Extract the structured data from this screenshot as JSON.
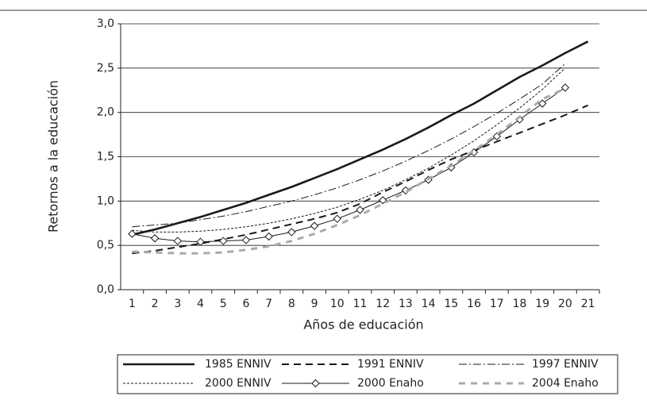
{
  "chart_data": {
    "type": "line",
    "x_label": "Años de educación",
    "y_label": "Retornos a la educación",
    "categories": [
      "1",
      "2",
      "3",
      "4",
      "5",
      "6",
      "7",
      "8",
      "9",
      "10",
      "11",
      "12",
      "13",
      "14",
      "15",
      "16",
      "17",
      "18",
      "19",
      "20",
      "21"
    ],
    "ylim": [
      0,
      3
    ],
    "yticks": [
      {
        "value": 0,
        "label": "0,0"
      },
      {
        "value": 0.5,
        "label": "0,5"
      },
      {
        "value": 1,
        "label": "1,0"
      },
      {
        "value": 1.5,
        "label": "1,5"
      },
      {
        "value": 2,
        "label": "2,0"
      },
      {
        "value": 2.5,
        "label": "2,5"
      },
      {
        "value": 3,
        "label": "3,0"
      }
    ],
    "grid": true,
    "legend": "bottom",
    "series": [
      {
        "name": "1985 ENNIV",
        "color": "#1a1a1a",
        "dash": "solid",
        "width": 2.6,
        "marker": "none",
        "values": [
          0.62,
          0.68,
          0.75,
          0.82,
          0.9,
          0.98,
          1.07,
          1.16,
          1.26,
          1.36,
          1.47,
          1.58,
          1.7,
          1.83,
          1.97,
          2.1,
          2.25,
          2.4,
          2.53,
          2.67,
          2.8
        ]
      },
      {
        "name": "1991 ENNIV",
        "color": "#1a1a1a",
        "dash": "dashed",
        "width": 2,
        "marker": "none",
        "values": [
          0.41,
          0.44,
          0.48,
          0.52,
          0.57,
          0.62,
          0.68,
          0.74,
          0.8,
          0.87,
          0.97,
          1.1,
          1.22,
          1.35,
          1.47,
          1.57,
          1.67,
          1.77,
          1.87,
          1.97,
          2.08
        ]
      },
      {
        "name": "1997 ENNIV",
        "color": "#1a1a1a",
        "dash": "dashdot",
        "width": 1,
        "marker": "none",
        "values": [
          0.71,
          0.73,
          0.75,
          0.79,
          0.83,
          0.88,
          0.94,
          1.0,
          1.07,
          1.15,
          1.24,
          1.34,
          1.45,
          1.57,
          1.7,
          1.84,
          1.99,
          2.15,
          2.32,
          2.55,
          null
        ]
      },
      {
        "name": "2000 ENNIV",
        "color": "#1a1a1a",
        "dash": "dotted",
        "width": 1,
        "marker": "none",
        "values": [
          0.67,
          0.65,
          0.65,
          0.66,
          0.68,
          0.71,
          0.75,
          0.8,
          0.86,
          0.93,
          1.02,
          1.12,
          1.24,
          1.37,
          1.52,
          1.68,
          1.86,
          2.05,
          2.26,
          2.5,
          null
        ]
      },
      {
        "name": "2000 Enaho",
        "color": "#1a1a1a",
        "dash": "solid",
        "width": 1,
        "marker": "diamond",
        "values": [
          0.63,
          0.58,
          0.55,
          0.54,
          0.55,
          0.56,
          0.6,
          0.65,
          0.72,
          0.8,
          0.9,
          1.01,
          1.12,
          1.24,
          1.38,
          1.55,
          1.73,
          1.92,
          2.1,
          2.28,
          null
        ]
      },
      {
        "name": "2004 Enaho",
        "color": "#aaaaaa",
        "dash": "longdash",
        "width": 3,
        "marker": "none",
        "values": [
          0.43,
          0.42,
          0.41,
          0.41,
          0.42,
          0.45,
          0.49,
          0.55,
          0.63,
          0.73,
          0.84,
          0.97,
          1.1,
          1.25,
          1.4,
          1.57,
          1.75,
          1.95,
          2.15,
          2.27,
          null
        ]
      }
    ]
  }
}
